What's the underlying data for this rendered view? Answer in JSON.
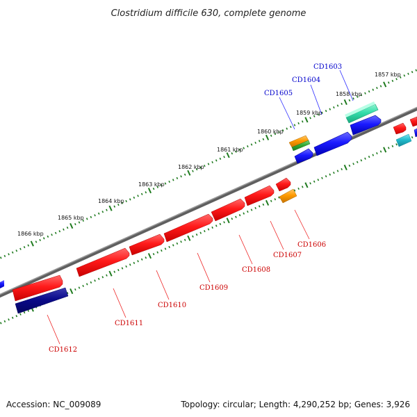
{
  "title": "Clostridium difficile 630, complete genome",
  "footer": {
    "accession": "Accession: NC_009089",
    "summary": "Topology: circular; Length: 4,290,252 bp; Genes: 3,926"
  },
  "colors": {
    "backbone": "#7a7a7a",
    "tick": "#1e7a1e",
    "forward_label": "#0000cc",
    "reverse_label": "#cc0000",
    "red": "#ff1a1a",
    "blue": "#1a1aff",
    "navy": "#0a0a8a",
    "teal_green": "#33ddaa",
    "cyan": "#22bbcc",
    "orange": "#ff9a00",
    "green": "#33aa33"
  },
  "scale_labels": [
    "1857 kbp",
    "1858 kbp",
    "1859 kbp",
    "1860 kbp",
    "1861 kbp",
    "1862 kbp",
    "1863 kbp",
    "1864 kbp",
    "1865 kbp",
    "1866 kbp"
  ],
  "forward_genes": [
    "CD1603",
    "CD1604",
    "CD1605"
  ],
  "reverse_genes": [
    "CD1606",
    "CD1607",
    "CD1608",
    "CD1609",
    "CD1610",
    "CD1611",
    "CD1612"
  ]
}
